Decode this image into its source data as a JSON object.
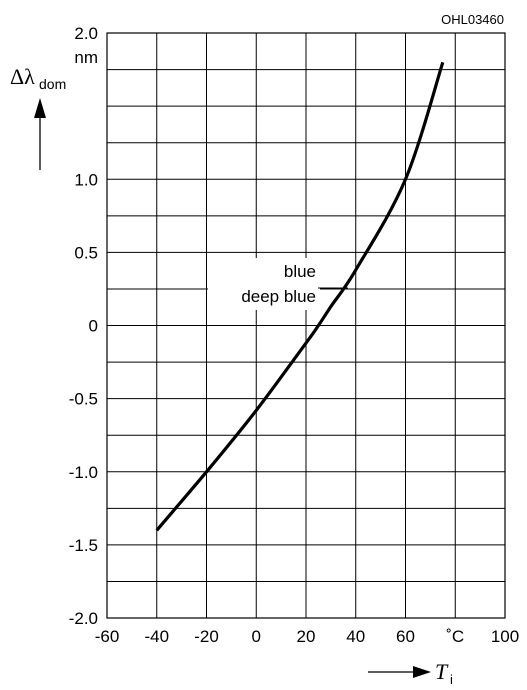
{
  "chart_data": {
    "type": "line",
    "figure_code": "OHL03460",
    "x_axis": {
      "symbol": "T",
      "subscript": "i",
      "unit": "˚C",
      "range": [
        -60,
        100
      ],
      "major_ticks": [
        -60,
        -40,
        -20,
        0,
        20,
        40,
        60,
        80,
        100
      ],
      "tick_labels": [
        "-60",
        "-40",
        "-20",
        "0",
        "20",
        "40",
        "60",
        "",
        "100"
      ],
      "grid_step": 20
    },
    "y_axis": {
      "symbol": "Δλ",
      "subscript": "dom",
      "unit": "nm",
      "range": [
        -2.0,
        2.0
      ],
      "major_ticks": [
        -2.0,
        -1.5,
        -1.0,
        -0.5,
        0,
        0.5,
        1.0,
        2.0
      ],
      "tick_labels": [
        "-2.0",
        "-1.5",
        "-1.0",
        "-0.5",
        "0",
        "0.5",
        "1.0",
        "2.0"
      ],
      "grid_step": 0.25
    },
    "grid": true,
    "series": [
      {
        "labels": [
          "blue",
          "deep blue"
        ],
        "color": "#000000",
        "x": [
          -40,
          -20,
          0,
          20,
          25,
          30,
          40,
          60,
          75
        ],
        "y": [
          -1.4,
          -1.0,
          -0.58,
          -0.12,
          0.0,
          0.13,
          0.38,
          1.0,
          1.8
        ]
      }
    ]
  }
}
